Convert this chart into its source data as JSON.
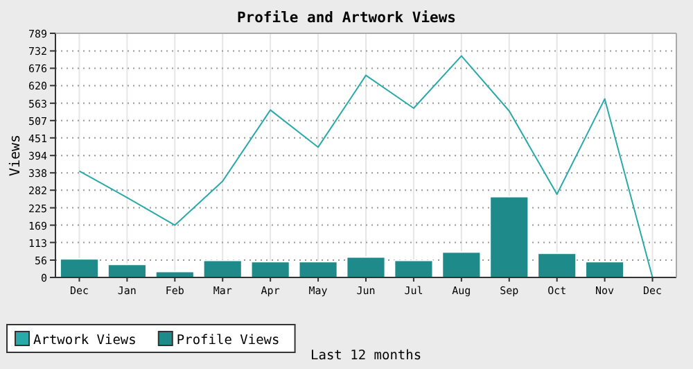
{
  "chart_data": {
    "type": "bar",
    "title": "Profile and Artwork Views",
    "ylabel": "Views",
    "categories": [
      "Dec",
      "Jan",
      "Feb",
      "Mar",
      "Apr",
      "May",
      "Jun",
      "Jul",
      "Aug",
      "Sep",
      "Oct",
      "Nov",
      "Dec"
    ],
    "series": [
      {
        "name": "Artwork Views",
        "type": "line",
        "color": "#2aa9a9",
        "values": [
          344,
          258,
          169,
          311,
          541,
          421,
          653,
          547,
          716,
          538,
          269,
          577,
          0
        ]
      },
      {
        "name": "Profile Views",
        "color": "#1e8a8a",
        "values": [
          60,
          42,
          19,
          55,
          51,
          51,
          66,
          55,
          82,
          261,
          78,
          51,
          0
        ]
      }
    ],
    "ylim": [
      0,
      789
    ],
    "yticks": [
      0,
      56,
      113,
      169,
      225,
      282,
      338,
      394,
      451,
      507,
      563,
      620,
      676,
      732,
      789
    ],
    "grid": true,
    "legend": "bottom left",
    "annotations": [
      "Last 12 months"
    ]
  }
}
